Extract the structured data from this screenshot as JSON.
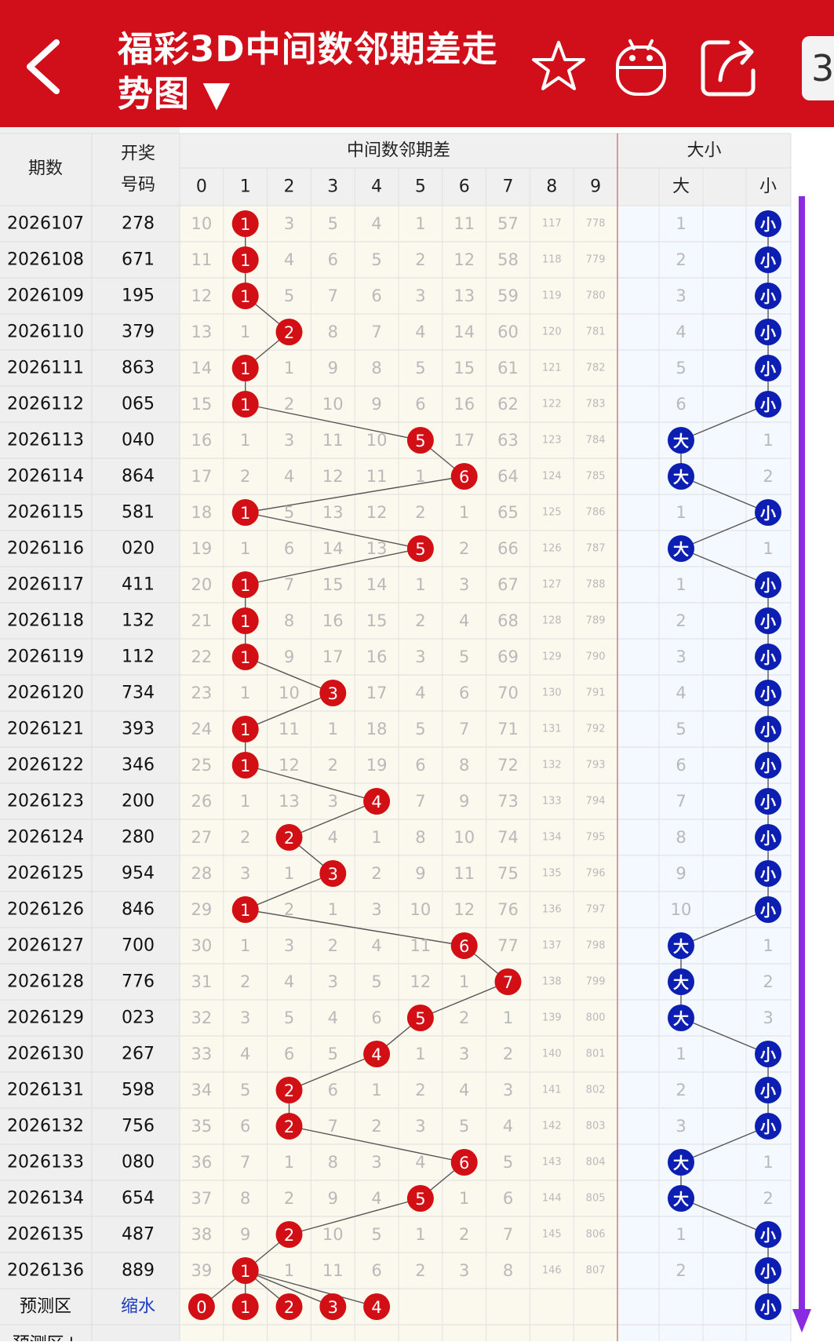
{
  "header": {
    "title": "福彩3D中间数邻期差走势图 ▼",
    "edge_chip": "3",
    "icons": [
      "back-arrow-icon",
      "star-icon",
      "android-icon",
      "share-icon"
    ]
  },
  "table": {
    "col_period": "期数",
    "col_draw_1": "开奖",
    "col_draw_2": "号码",
    "group_diff": "中间数邻期差",
    "group_size": "大小",
    "diff_cols": [
      "0",
      "1",
      "2",
      "3",
      "4",
      "5",
      "6",
      "7",
      "8",
      "9"
    ],
    "size_cols": [
      "大",
      "",
      "小"
    ],
    "rows": [
      {
        "p": "2026107",
        "d": "278",
        "c": [
          "10",
          "1",
          "3",
          "5",
          "4",
          "1",
          "11",
          "57",
          "117",
          "778"
        ],
        "hit": 1,
        "s": [
          "1",
          "",
          "小"
        ],
        "sh": 2
      },
      {
        "p": "2026108",
        "d": "671",
        "c": [
          "11",
          "1",
          "4",
          "6",
          "5",
          "2",
          "12",
          "58",
          "118",
          "779"
        ],
        "hit": 1,
        "s": [
          "2",
          "",
          "小"
        ],
        "sh": 2
      },
      {
        "p": "2026109",
        "d": "195",
        "c": [
          "12",
          "1",
          "5",
          "7",
          "6",
          "3",
          "13",
          "59",
          "119",
          "780"
        ],
        "hit": 1,
        "s": [
          "3",
          "",
          "小"
        ],
        "sh": 2
      },
      {
        "p": "2026110",
        "d": "379",
        "c": [
          "13",
          "1",
          "2",
          "8",
          "7",
          "4",
          "14",
          "60",
          "120",
          "781"
        ],
        "hit": 2,
        "s": [
          "4",
          "",
          "小"
        ],
        "sh": 2
      },
      {
        "p": "2026111",
        "d": "863",
        "c": [
          "14",
          "1",
          "1",
          "9",
          "8",
          "5",
          "15",
          "61",
          "121",
          "782"
        ],
        "hit": 1,
        "s": [
          "5",
          "",
          "小"
        ],
        "sh": 2
      },
      {
        "p": "2026112",
        "d": "065",
        "c": [
          "15",
          "1",
          "2",
          "10",
          "9",
          "6",
          "16",
          "62",
          "122",
          "783"
        ],
        "hit": 1,
        "s": [
          "6",
          "",
          "小"
        ],
        "sh": 2
      },
      {
        "p": "2026113",
        "d": "040",
        "c": [
          "16",
          "1",
          "3",
          "11",
          "10",
          "5",
          "17",
          "63",
          "123",
          "784"
        ],
        "hit": 5,
        "s": [
          "大",
          "",
          "1"
        ],
        "sh": 0
      },
      {
        "p": "2026114",
        "d": "864",
        "c": [
          "17",
          "2",
          "4",
          "12",
          "11",
          "1",
          "6",
          "64",
          "124",
          "785"
        ],
        "hit": 6,
        "s": [
          "大",
          "",
          "2"
        ],
        "sh": 0
      },
      {
        "p": "2026115",
        "d": "581",
        "c": [
          "18",
          "1",
          "5",
          "13",
          "12",
          "2",
          "1",
          "65",
          "125",
          "786"
        ],
        "hit": 1,
        "s": [
          "1",
          "",
          "小"
        ],
        "sh": 2
      },
      {
        "p": "2026116",
        "d": "020",
        "c": [
          "19",
          "1",
          "6",
          "14",
          "13",
          "5",
          "2",
          "66",
          "126",
          "787"
        ],
        "hit": 5,
        "s": [
          "大",
          "",
          "1"
        ],
        "sh": 0
      },
      {
        "p": "2026117",
        "d": "411",
        "c": [
          "20",
          "1",
          "7",
          "15",
          "14",
          "1",
          "3",
          "67",
          "127",
          "788"
        ],
        "hit": 1,
        "s": [
          "1",
          "",
          "小"
        ],
        "sh": 2
      },
      {
        "p": "2026118",
        "d": "132",
        "c": [
          "21",
          "1",
          "8",
          "16",
          "15",
          "2",
          "4",
          "68",
          "128",
          "789"
        ],
        "hit": 1,
        "s": [
          "2",
          "",
          "小"
        ],
        "sh": 2
      },
      {
        "p": "2026119",
        "d": "112",
        "c": [
          "22",
          "1",
          "9",
          "17",
          "16",
          "3",
          "5",
          "69",
          "129",
          "790"
        ],
        "hit": 1,
        "s": [
          "3",
          "",
          "小"
        ],
        "sh": 2
      },
      {
        "p": "2026120",
        "d": "734",
        "c": [
          "23",
          "1",
          "10",
          "3",
          "17",
          "4",
          "6",
          "70",
          "130",
          "791"
        ],
        "hit": 3,
        "s": [
          "4",
          "",
          "小"
        ],
        "sh": 2
      },
      {
        "p": "2026121",
        "d": "393",
        "c": [
          "24",
          "1",
          "11",
          "1",
          "18",
          "5",
          "7",
          "71",
          "131",
          "792"
        ],
        "hit": 1,
        "s": [
          "5",
          "",
          "小"
        ],
        "sh": 2
      },
      {
        "p": "2026122",
        "d": "346",
        "c": [
          "25",
          "1",
          "12",
          "2",
          "19",
          "6",
          "8",
          "72",
          "132",
          "793"
        ],
        "hit": 1,
        "s": [
          "6",
          "",
          "小"
        ],
        "sh": 2
      },
      {
        "p": "2026123",
        "d": "200",
        "c": [
          "26",
          "1",
          "13",
          "3",
          "4",
          "7",
          "9",
          "73",
          "133",
          "794"
        ],
        "hit": 4,
        "s": [
          "7",
          "",
          "小"
        ],
        "sh": 2
      },
      {
        "p": "2026124",
        "d": "280",
        "c": [
          "27",
          "2",
          "2",
          "4",
          "1",
          "8",
          "10",
          "74",
          "134",
          "795"
        ],
        "hit": 2,
        "s": [
          "8",
          "",
          "小"
        ],
        "sh": 2
      },
      {
        "p": "2026125",
        "d": "954",
        "c": [
          "28",
          "3",
          "1",
          "3",
          "2",
          "9",
          "11",
          "75",
          "135",
          "796"
        ],
        "hit": 3,
        "s": [
          "9",
          "",
          "小"
        ],
        "sh": 2
      },
      {
        "p": "2026126",
        "d": "846",
        "c": [
          "29",
          "1",
          "2",
          "1",
          "3",
          "10",
          "12",
          "76",
          "136",
          "797"
        ],
        "hit": 1,
        "s": [
          "10",
          "",
          "小"
        ],
        "sh": 2
      },
      {
        "p": "2026127",
        "d": "700",
        "c": [
          "30",
          "1",
          "3",
          "2",
          "4",
          "11",
          "6",
          "77",
          "137",
          "798"
        ],
        "hit": 6,
        "s": [
          "大",
          "",
          "1"
        ],
        "sh": 0
      },
      {
        "p": "2026128",
        "d": "776",
        "c": [
          "31",
          "2",
          "4",
          "3",
          "5",
          "12",
          "1",
          "7",
          "138",
          "799"
        ],
        "hit": 7,
        "s": [
          "大",
          "",
          "2"
        ],
        "sh": 0
      },
      {
        "p": "2026129",
        "d": "023",
        "c": [
          "32",
          "3",
          "5",
          "4",
          "6",
          "5",
          "2",
          "1",
          "139",
          "800"
        ],
        "hit": 5,
        "s": [
          "大",
          "",
          "3"
        ],
        "sh": 0
      },
      {
        "p": "2026130",
        "d": "267",
        "c": [
          "33",
          "4",
          "6",
          "5",
          "4",
          "1",
          "3",
          "2",
          "140",
          "801"
        ],
        "hit": 4,
        "s": [
          "1",
          "",
          "小"
        ],
        "sh": 2
      },
      {
        "p": "2026131",
        "d": "598",
        "c": [
          "34",
          "5",
          "2",
          "6",
          "1",
          "2",
          "4",
          "3",
          "141",
          "802"
        ],
        "hit": 2,
        "s": [
          "2",
          "",
          "小"
        ],
        "sh": 2
      },
      {
        "p": "2026132",
        "d": "756",
        "c": [
          "35",
          "6",
          "2",
          "7",
          "2",
          "3",
          "5",
          "4",
          "142",
          "803"
        ],
        "hit": 2,
        "s": [
          "3",
          "",
          "小"
        ],
        "sh": 2
      },
      {
        "p": "2026133",
        "d": "080",
        "c": [
          "36",
          "7",
          "1",
          "8",
          "3",
          "4",
          "6",
          "5",
          "143",
          "804"
        ],
        "hit": 6,
        "s": [
          "大",
          "",
          "1"
        ],
        "sh": 0
      },
      {
        "p": "2026134",
        "d": "654",
        "c": [
          "37",
          "8",
          "2",
          "9",
          "4",
          "5",
          "1",
          "6",
          "144",
          "805"
        ],
        "hit": 5,
        "s": [
          "大",
          "",
          "2"
        ],
        "sh": 0
      },
      {
        "p": "2026135",
        "d": "487",
        "c": [
          "38",
          "9",
          "2",
          "10",
          "5",
          "1",
          "2",
          "7",
          "145",
          "806"
        ],
        "hit": 2,
        "s": [
          "1",
          "",
          "小"
        ],
        "sh": 2
      },
      {
        "p": "2026136",
        "d": "889",
        "c": [
          "39",
          "1",
          "1",
          "11",
          "6",
          "2",
          "3",
          "8",
          "146",
          "807"
        ],
        "hit": 1,
        "s": [
          "2",
          "",
          "小"
        ],
        "sh": 2
      }
    ],
    "predict_row": {
      "label": "预测区",
      "tag": "缩水",
      "balls": [
        "0",
        "1",
        "2",
        "3",
        "4"
      ],
      "size_ball": "小"
    },
    "predict_row2_label": "预测区↓"
  },
  "colors": {
    "header_red": "#d10f1a",
    "ball_red": "#d20f14",
    "ball_blue": "#0d1fb3",
    "miss_text": "#b9b9b9",
    "arrow_purple": "#8a2be2",
    "left_col_bg": "#efefef",
    "grid_bg": "#fbf8ee",
    "size_bg": "#f4f8ff"
  }
}
